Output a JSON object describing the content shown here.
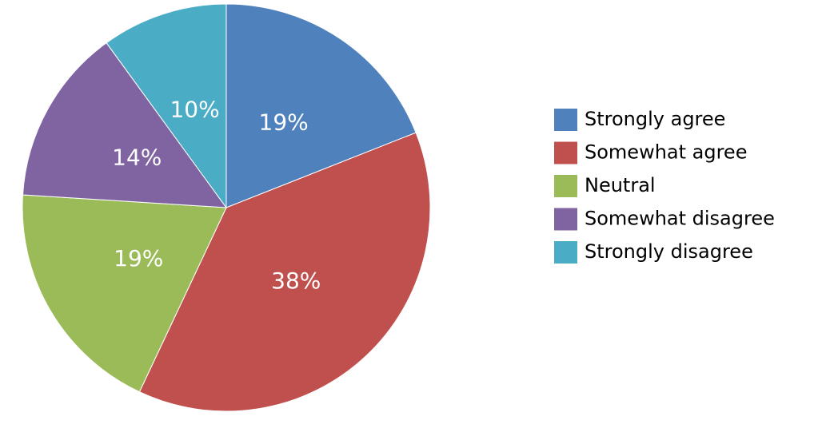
{
  "chart_data": {
    "type": "pie",
    "categories": [
      "Strongly agree",
      "Somewhat agree",
      "Neutral",
      "Somewhat disagree",
      "Strongly disagree"
    ],
    "values": [
      19,
      38,
      19,
      14,
      10
    ],
    "value_labels": [
      "19%",
      "38%",
      "19%",
      "14%",
      "10%"
    ],
    "colors": [
      "#4f81bd",
      "#c0504d",
      "#9bbb59",
      "#8064a2",
      "#4bacc6"
    ],
    "legend": "right"
  }
}
